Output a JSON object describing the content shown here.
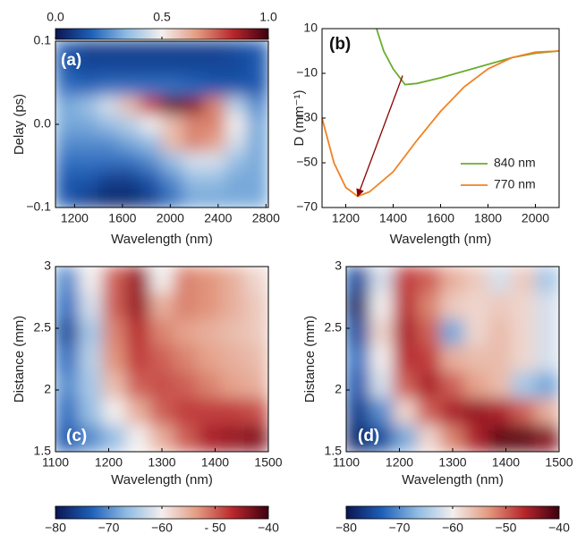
{
  "chart_data": [
    {
      "type": "heatmap",
      "panel_label": "(a)",
      "xlabel": "Wavelength (nm)",
      "ylabel": "Delay (ps)",
      "xlim": [
        1040,
        2820
      ],
      "xticks": [
        1200,
        1600,
        2000,
        2400,
        2800
      ],
      "ylim": [
        -0.1,
        0.1
      ],
      "yticks": [
        {
          "value": -0.1,
          "label": "−0.1"
        },
        {
          "value": 0,
          "label": "0.0"
        },
        0.1
      ],
      "colormap": [
        "#0b1550",
        "#1d5fb8",
        "#8fbbe3",
        "#f3efee",
        "#e39a80",
        "#b8272c",
        "#3d0010"
      ],
      "colorbar": {
        "position": "top",
        "lim": [
          0,
          1
        ],
        "ticks": [
          {
            "value": 0,
            "label": "0.0"
          },
          0.5,
          {
            "value": 1,
            "label": "1.0"
          }
        ]
      },
      "z": [
        [
          0.15,
          0.1,
          0.1,
          0.1,
          0.1,
          0.1,
          0.1,
          0.1,
          0.12,
          0.15
        ],
        [
          0.15,
          0.12,
          0.12,
          0.12,
          0.12,
          0.12,
          0.12,
          0.12,
          0.12,
          0.15
        ],
        [
          0.2,
          0.18,
          0.2,
          0.2,
          0.2,
          0.2,
          0.18,
          0.15,
          0.15,
          0.15
        ],
        [
          0.3,
          0.35,
          0.45,
          0.6,
          0.8,
          0.95,
          0.9,
          0.7,
          0.4,
          0.25
        ],
        [
          0.3,
          0.3,
          0.35,
          0.4,
          0.5,
          0.6,
          0.7,
          0.7,
          0.5,
          0.3
        ],
        [
          0.25,
          0.25,
          0.25,
          0.3,
          0.35,
          0.6,
          0.7,
          0.65,
          0.45,
          0.3
        ],
        [
          0.2,
          0.2,
          0.2,
          0.2,
          0.25,
          0.35,
          0.45,
          0.45,
          0.35,
          0.3
        ],
        [
          0.15,
          0.15,
          0.1,
          0.1,
          0.15,
          0.25,
          0.35,
          0.35,
          0.3,
          0.3
        ],
        [
          0.15,
          0.1,
          0.05,
          0.05,
          0.1,
          0.2,
          0.3,
          0.3,
          0.3,
          0.3
        ]
      ]
    },
    {
      "type": "line",
      "panel_label": "(b)",
      "xlabel": "Wavelength (nm)",
      "ylabel": "D (mm⁻¹)",
      "xlim": [
        1100,
        2100
      ],
      "xticks": [
        1200,
        1400,
        1600,
        1800,
        2000
      ],
      "ylim": [
        -70,
        10
      ],
      "yticks": [
        {
          "value": -70,
          "label": "−70"
        },
        {
          "value": -50,
          "label": "−50"
        },
        {
          "value": -30,
          "label": "−30"
        },
        {
          "value": -10,
          "label": "−10"
        },
        10
      ],
      "legend": "lower right",
      "series": [
        {
          "name": "840 nm",
          "color": "#6aad2f",
          "x": [
            1330,
            1360,
            1400,
            1450,
            1500,
            1600,
            1700,
            1800,
            1900,
            2000,
            2100
          ],
          "values": [
            10,
            0,
            -8,
            -15,
            -14.5,
            -12,
            -9,
            -6,
            -3,
            -1,
            0
          ]
        },
        {
          "name": "770 nm",
          "color": "#f08224",
          "x": [
            1100,
            1150,
            1200,
            1250,
            1300,
            1400,
            1500,
            1600,
            1700,
            1800,
            1900,
            2000,
            2100
          ],
          "values": [
            -30,
            -50,
            -61,
            -65,
            -63,
            -54,
            -40,
            -27,
            -16,
            -8,
            -3,
            -0.5,
            0
          ]
        }
      ],
      "arrow": {
        "from": [
          1440,
          -11
        ],
        "to": [
          1250,
          -65
        ],
        "color": "#8b0000"
      }
    },
    {
      "type": "heatmap",
      "panel_label": "(c)",
      "xlabel": "Wavelength (nm)",
      "ylabel": "Distance (mm)",
      "xlim": [
        1100,
        1500
      ],
      "xticks": [
        1100,
        1200,
        1300,
        1400,
        1500
      ],
      "ylim": [
        1.5,
        3
      ],
      "yticks": [
        1.5,
        2,
        2.5,
        3
      ],
      "ytick_labels_fixed": true,
      "colormap": [
        "#0b1550",
        "#1d5fb8",
        "#8fbbe3",
        "#f3efee",
        "#e39a80",
        "#b8272c",
        "#3d0010"
      ],
      "colorbar": {
        "position": "bottom",
        "lim": [
          -80,
          -40
        ],
        "ticks": [
          {
            "value": -80,
            "label": "−80"
          },
          {
            "value": -70,
            "label": "−70"
          },
          {
            "value": -60,
            "label": "−60"
          },
          {
            "value": -50,
            "label": "- 50"
          },
          {
            "value": -40,
            "label": "−40"
          }
        ]
      },
      "z": [
        [
          -70,
          -60,
          -50,
          -45,
          -60,
          -52,
          -53,
          -55,
          -58
        ],
        [
          -72,
          -62,
          -50,
          -45,
          -55,
          -52,
          -53,
          -55,
          -57
        ],
        [
          -75,
          -65,
          -52,
          -47,
          -52,
          -54,
          -55,
          -56,
          -57
        ],
        [
          -72,
          -64,
          -53,
          -48,
          -50,
          -52,
          -54,
          -55,
          -56
        ],
        [
          -70,
          -65,
          -56,
          -50,
          -49,
          -50,
          -52,
          -54,
          -55
        ],
        [
          -72,
          -66,
          -60,
          -55,
          -50,
          -48,
          -48,
          -48,
          -49
        ],
        [
          -74,
          -70,
          -66,
          -60,
          -55,
          -50,
          -46,
          -45,
          -44
        ]
      ]
    },
    {
      "type": "heatmap",
      "panel_label": "(d)",
      "xlabel": "Wavelength (nm)",
      "ylabel": "Distance (mm)",
      "xlim": [
        1100,
        1500
      ],
      "xticks": [
        1100,
        1200,
        1300,
        1400,
        1500
      ],
      "ylim": [
        1.5,
        3
      ],
      "yticks": [
        1.5,
        2,
        2.5,
        3
      ],
      "colormap": [
        "#0b1550",
        "#1d5fb8",
        "#8fbbe3",
        "#f3efee",
        "#e39a80",
        "#b8272c",
        "#3d0010"
      ],
      "colorbar": {
        "position": "bottom",
        "lim": [
          -80,
          -40
        ],
        "ticks": [
          {
            "value": -80,
            "label": "−80"
          },
          {
            "value": -70,
            "label": "−70"
          },
          {
            "value": -60,
            "label": "−60"
          },
          {
            "value": -50,
            "label": "−50"
          },
          {
            "value": -40,
            "label": "−40"
          }
        ]
      },
      "z": [
        [
          -75,
          -62,
          -48,
          -50,
          -55,
          -57,
          -62,
          -57,
          -65
        ],
        [
          -78,
          -60,
          -47,
          -52,
          -57,
          -58,
          -57,
          -58,
          -62
        ],
        [
          -75,
          -58,
          -46,
          -50,
          -68,
          -58,
          -56,
          -58,
          -62
        ],
        [
          -72,
          -60,
          -47,
          -48,
          -55,
          -56,
          -56,
          -58,
          -62
        ],
        [
          -74,
          -62,
          -50,
          -46,
          -50,
          -54,
          -56,
          -65,
          -68
        ],
        [
          -76,
          -70,
          -58,
          -50,
          -46,
          -45,
          -46,
          -50,
          -55
        ],
        [
          -78,
          -75,
          -68,
          -58,
          -52,
          -46,
          -42,
          -42,
          -44
        ]
      ]
    }
  ]
}
